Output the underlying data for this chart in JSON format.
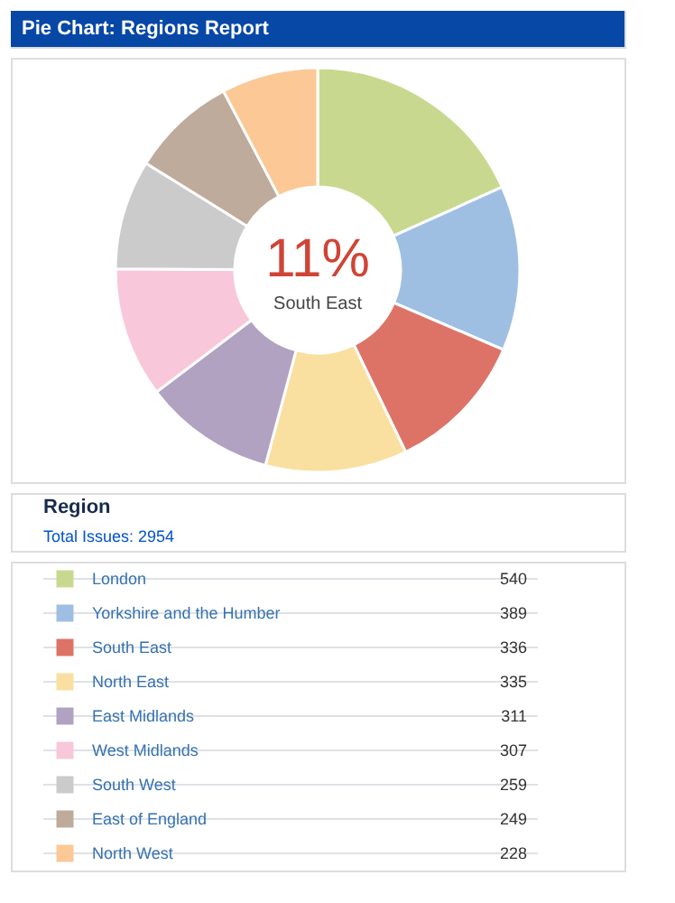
{
  "chart_data": {
    "type": "donut",
    "title": "Pie Chart: Regions Report",
    "legend_title": "Region",
    "categories": [
      "London",
      "Yorkshire and the Humber",
      "South East",
      "North East",
      "East Midlands",
      "West Midlands",
      "South West",
      "East of England",
      "North West"
    ],
    "values": [
      540,
      389,
      336,
      335,
      311,
      307,
      259,
      249,
      228
    ],
    "colors": [
      "#c8d98f",
      "#9fbfe2",
      "#dd7367",
      "#f9e0a0",
      "#b1a2c1",
      "#f9c7da",
      "#cbcbcb",
      "#bfab9b",
      "#fbc896"
    ],
    "data_labels": true,
    "legend": "bottom",
    "annotations": [
      "11%",
      "South East",
      "Total Issues: 2954"
    ]
  }
}
